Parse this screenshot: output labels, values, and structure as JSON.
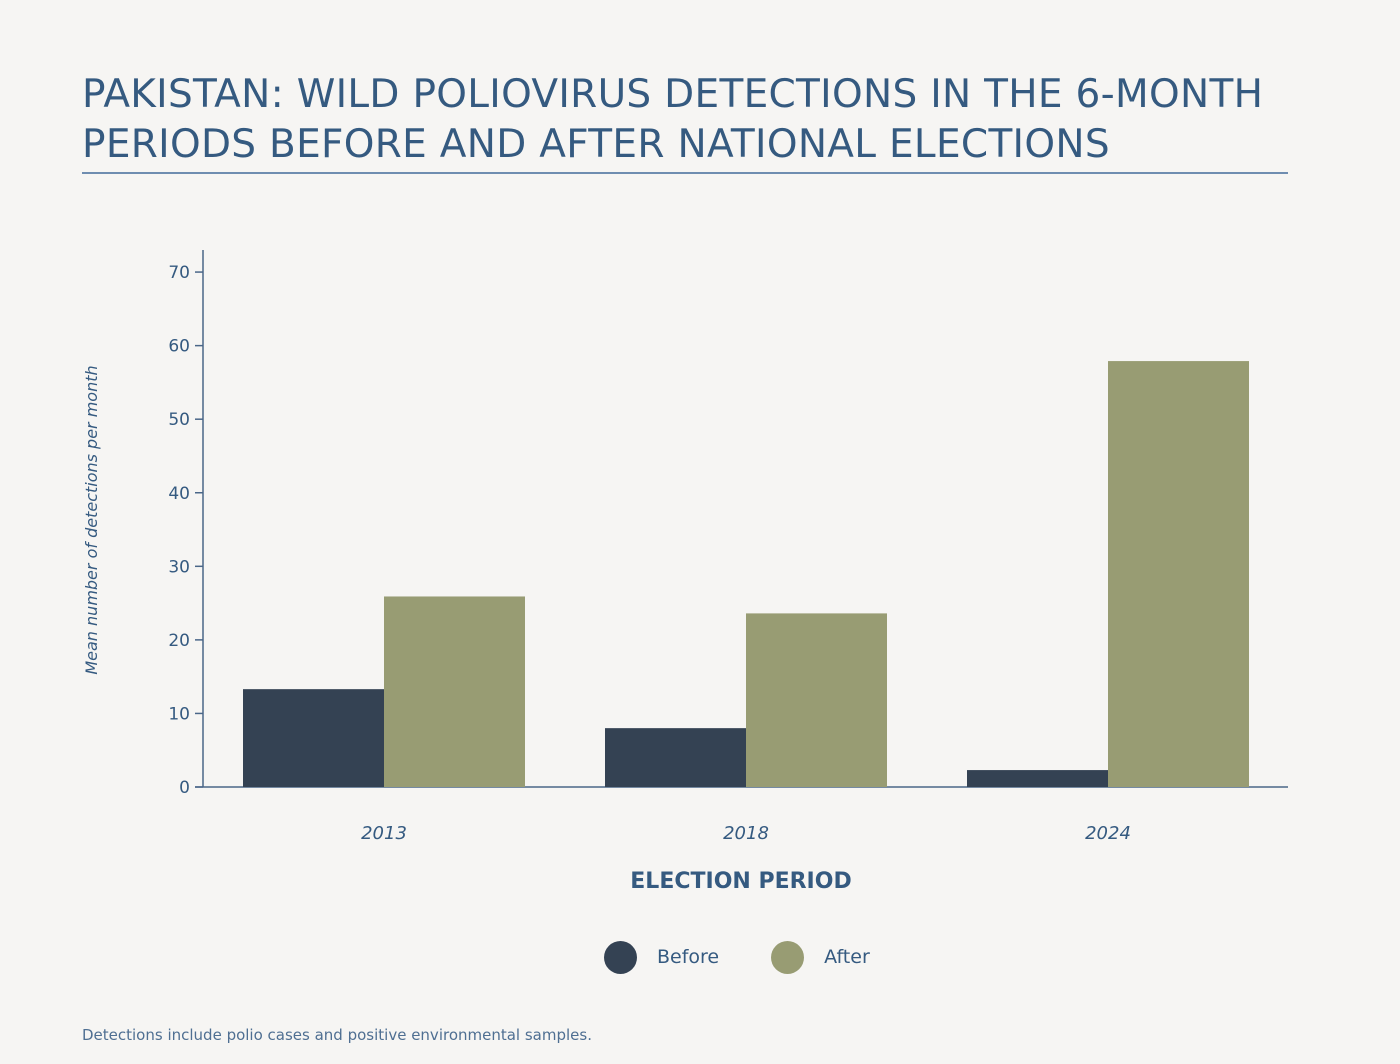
{
  "chart_data": {
    "type": "bar",
    "title_lines": [
      "PAKISTAN: WILD POLIOVIRUS DETECTIONS IN THE 6-MONTH",
      "PERIODS BEFORE AND AFTER NATIONAL ELECTIONS"
    ],
    "xlabel": "ELECTION PERIOD",
    "ylabel": "Mean number of detections per month",
    "categories": [
      "2013",
      "2018",
      "2024"
    ],
    "series": [
      {
        "name": "Before",
        "color": "#344253",
        "values": [
          13.3,
          8.0,
          2.3
        ]
      },
      {
        "name": "After",
        "color": "#989c73",
        "values": [
          25.9,
          23.6,
          57.9
        ]
      }
    ],
    "ylim": [
      0,
      73
    ],
    "yticks": [
      0,
      10,
      20,
      30,
      40,
      50,
      60,
      70
    ],
    "grid": false,
    "legend_position": "bottom-center"
  },
  "footnote": "Detections include polio cases and positive environmental samples."
}
